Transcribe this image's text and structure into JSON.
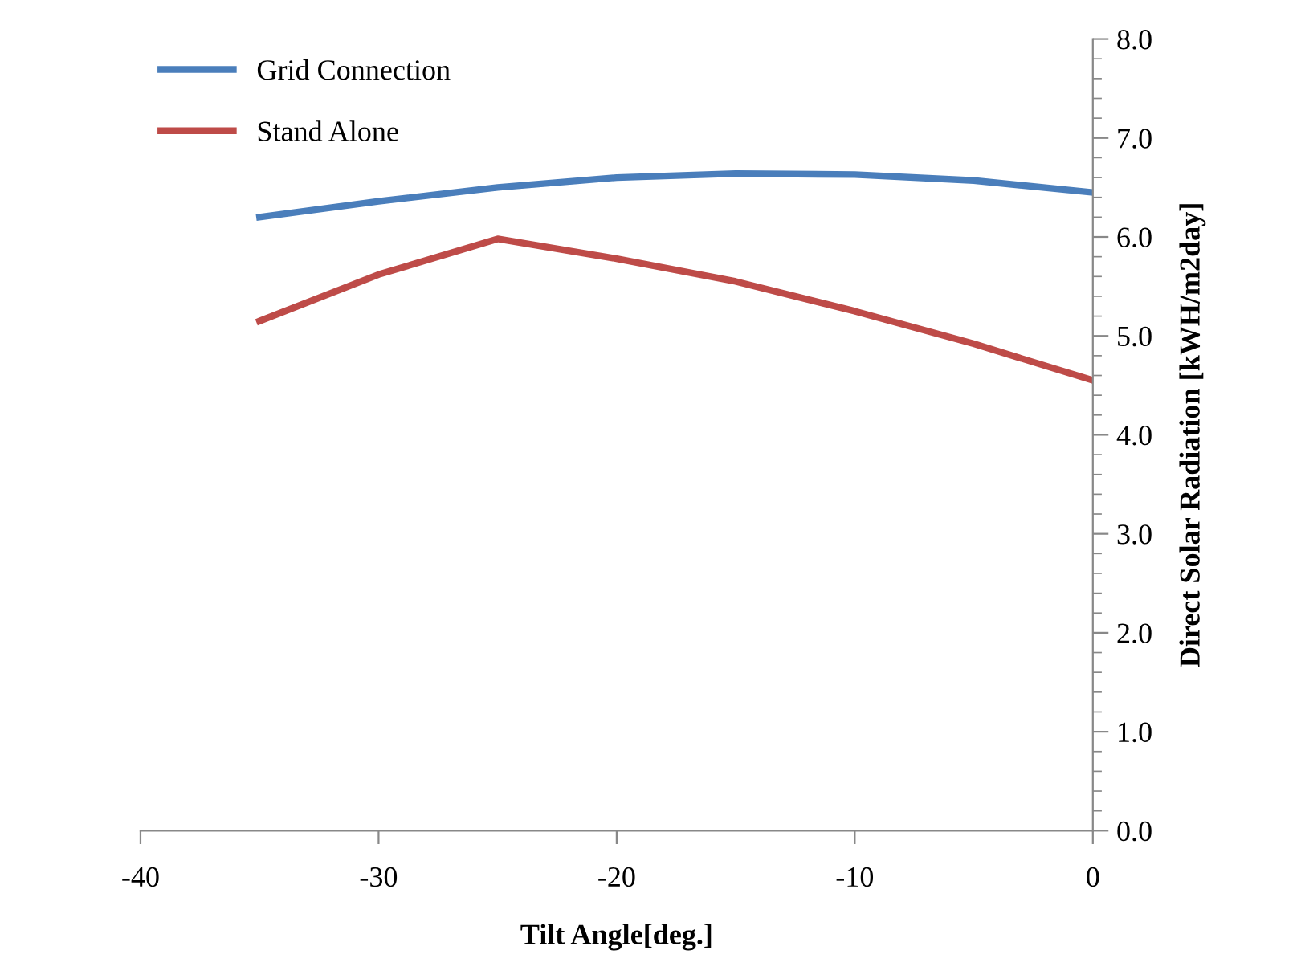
{
  "chart_data": {
    "type": "line",
    "xlabel": "Tilt Angle[deg.]",
    "ylabel": "Direct Solar Radiation [kWH/m2day]",
    "x": [
      -35,
      -30,
      -25,
      -20,
      -15,
      -10,
      -5,
      0
    ],
    "series": [
      {
        "name": "Grid Connection",
        "color": "#4a7ebb",
        "values": [
          6.2,
          6.36,
          6.5,
          6.6,
          6.64,
          6.63,
          6.57,
          6.45
        ]
      },
      {
        "name": "Stand Alone",
        "color": "#be4b48",
        "values": [
          5.15,
          5.62,
          5.98,
          5.78,
          5.55,
          5.25,
          4.92,
          4.55
        ]
      }
    ],
    "xlim": [
      -40,
      0
    ],
    "xticks": [
      {
        "value": -40,
        "label": "-40"
      },
      {
        "value": -30,
        "label": "-30"
      },
      {
        "value": -20,
        "label": "-20"
      },
      {
        "value": -10,
        "label": "-10"
      },
      0
    ],
    "ylim": [
      0,
      8
    ],
    "yticks": [
      {
        "value": 0,
        "label": "0.0"
      },
      {
        "value": 1,
        "label": "1.0"
      },
      {
        "value": 2,
        "label": "2.0"
      },
      {
        "value": 3,
        "label": "3.0"
      },
      {
        "value": 4,
        "label": "4.0"
      },
      {
        "value": 5,
        "label": "5.0"
      },
      {
        "value": 6,
        "label": "6.0"
      },
      {
        "value": 7,
        "label": "7.0"
      },
      {
        "value": 8,
        "label": "8.0"
      }
    ],
    "grid": false,
    "legend": "top left",
    "marker": "none",
    "line_style": "solid"
  }
}
